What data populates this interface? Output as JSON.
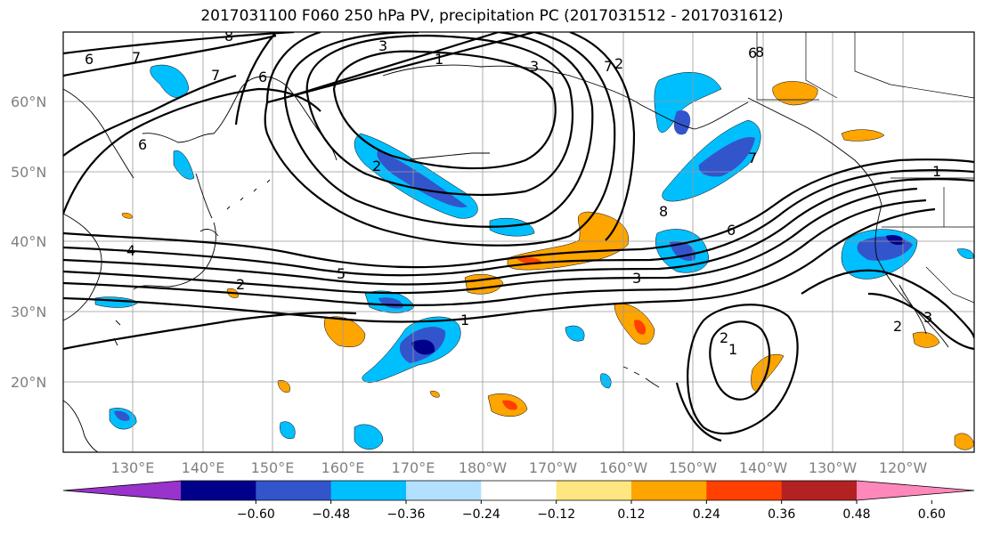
{
  "title": "2017031100 F060 250 hPa PV, precipitation PC (2017031512 - 2017031612)",
  "lat_labels": [
    "60°N",
    "50°N",
    "40°N",
    "30°N",
    "20°N"
  ],
  "lon_labels": [
    "130°E",
    "140°E",
    "150°E",
    "160°E",
    "170°E",
    "180°W",
    "170°W",
    "160°W",
    "150°W",
    "140°W",
    "130°W",
    "120°W"
  ],
  "contour_labels": [
    "6",
    "7",
    "7",
    "8",
    "6",
    "3",
    "1",
    "3",
    "7",
    "6",
    "6",
    "8",
    "7",
    "1",
    "6",
    "4",
    "5",
    "2",
    "3",
    "1",
    "2",
    "1",
    "2",
    "3",
    "2",
    "8",
    "2"
  ],
  "colorbar": {
    "ticks": [
      "−0.60",
      "−0.48",
      "−0.36",
      "−0.24",
      "−0.12",
      "0.12",
      "0.24",
      "0.36",
      "0.48",
      "0.60"
    ],
    "colors": [
      "#9933cc",
      "#00008b",
      "#3355cc",
      "#00bfff",
      "#b3e0ff",
      "#ffffff",
      "#ffe680",
      "#ffa500",
      "#ff4000",
      "#b22222",
      "#ff88bb"
    ]
  }
}
